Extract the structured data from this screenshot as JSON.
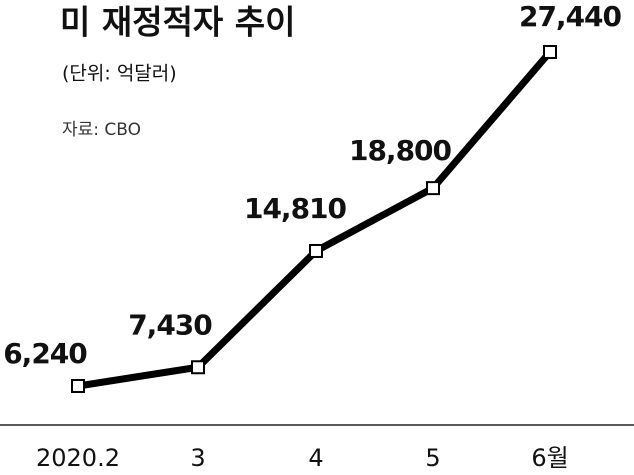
{
  "chart_data": {
    "type": "line",
    "title": "미 재정적자 추이",
    "subtitle": "(단위: 억달러)",
    "source": "자료: CBO",
    "categories": [
      "2020.2",
      "3",
      "4",
      "5",
      "6월"
    ],
    "values": [
      6240,
      7430,
      14810,
      18800,
      27440
    ],
    "value_labels": [
      "6,240",
      "7,430",
      "14,810",
      "18,800",
      "27,440"
    ],
    "color": "#000000"
  }
}
